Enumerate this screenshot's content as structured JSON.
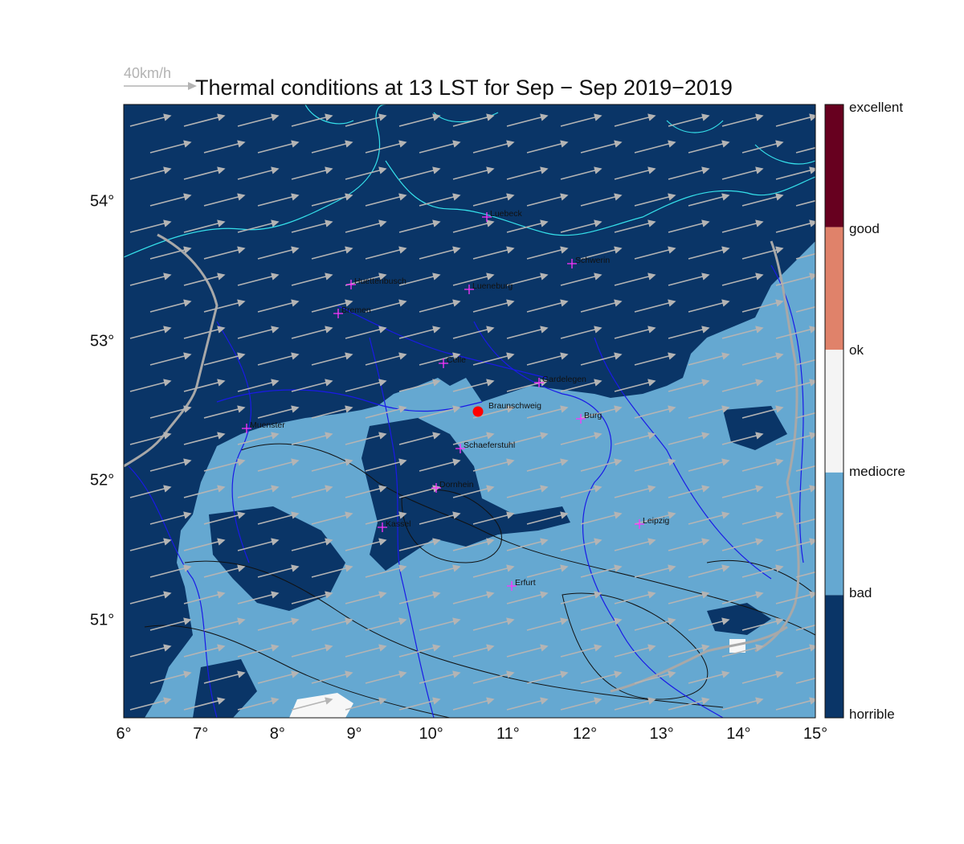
{
  "title": "Thermal conditions at 13 LST for Sep − Sep  2019−2019",
  "wind_scale": {
    "label": "40km/h"
  },
  "map": {
    "lon_range": [
      6,
      15
    ],
    "lat_range": [
      50.3,
      54.7
    ],
    "x_ticks": [
      "6°",
      "7°",
      "8°",
      "9°",
      "10°",
      "11°",
      "12°",
      "13°",
      "14°",
      "15°"
    ],
    "y_ticks": [
      "51°",
      "52°",
      "53°",
      "54°"
    ],
    "wind_direction": "west-southwest to east-northeast",
    "layers": [
      "thermal conditions",
      "wind vectors",
      "coastlines",
      "rivers",
      "borders",
      "terrain contours"
    ]
  },
  "colorbar": {
    "labels": [
      "excellent",
      "good",
      "ok",
      "mediocre",
      "bad",
      "horrible"
    ],
    "colors": {
      "excellent": "#67001f",
      "good": "#e0826a",
      "ok": "#f4f4f4",
      "mediocre": "#f4f4f4",
      "bad": "#65a8d1",
      "horrible": "#0a3567"
    }
  },
  "colors": {
    "horrible": "#0a3567",
    "bad": "#65a8d1",
    "coast": "#35e0ea",
    "river": "#1a1ae6",
    "border": "#a8a8a8",
    "contour": "#111111",
    "wind": "#b4b4b4",
    "city_marker": "#ff33ff",
    "launch_site": "#ff0000"
  },
  "cities": [
    {
      "name": "Luebeck"
    },
    {
      "name": "Schwerin"
    },
    {
      "name": "Huettenbusch"
    },
    {
      "name": "Lueneburg"
    },
    {
      "name": "Bremen"
    },
    {
      "name": "Celle"
    },
    {
      "name": "Gardelegen"
    },
    {
      "name": "Braunschweig"
    },
    {
      "name": "Burg"
    },
    {
      "name": "Muenster"
    },
    {
      "name": "Schaeferstuhl"
    },
    {
      "name": "Dornhein"
    },
    {
      "name": "Leipzig"
    },
    {
      "name": "Kassel"
    },
    {
      "name": "Erfurt"
    }
  ],
  "launch_site": {
    "name": "Braunschweig"
  }
}
